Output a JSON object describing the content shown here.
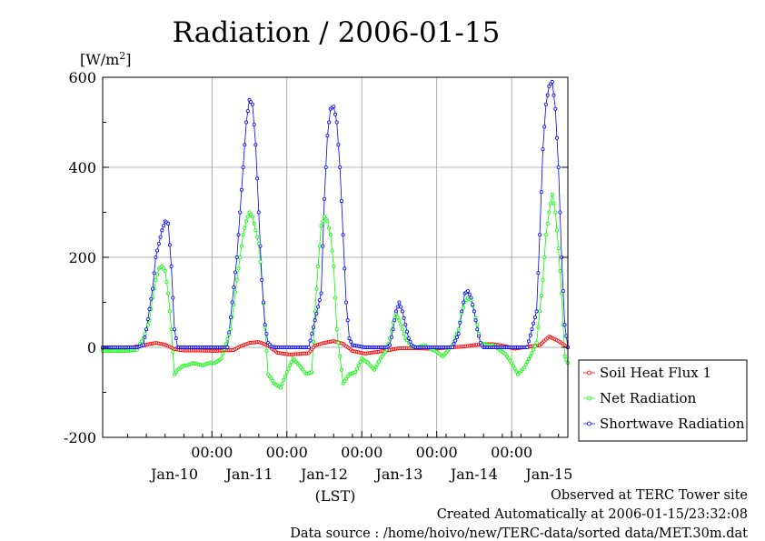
{
  "chart_data": {
    "type": "line",
    "title": "Radiation / 2006-01-15",
    "ylabel": "[W/m",
    "ylabel_sup": "2",
    "ylabel_close": "]",
    "xlabel": "(LST)",
    "ylim": [
      -200,
      600
    ],
    "xlim": [
      -8,
      141
    ],
    "x_units": "hours since 2006-01-09 21:00 LST",
    "yticks": [
      -200,
      0,
      200,
      400,
      600
    ],
    "ytick_labels": [
      "-200",
      "0",
      "200",
      "400",
      "600"
    ],
    "xticks_time": [
      27,
      51,
      75,
      99,
      123
    ],
    "xtick_time_labels": [
      "00:00",
      "00:00",
      "00:00",
      "00:00",
      "00:00"
    ],
    "xtick_day_labels": [
      "Jan-10",
      "Jan-11",
      "Jan-12",
      "Jan-13",
      "Jan-14",
      "Jan-15"
    ],
    "xtick_day_positions": [
      15,
      39,
      63,
      87,
      111,
      135
    ],
    "grid": true,
    "legend_position": "right",
    "series": [
      {
        "name": "Soil Heat Flux 1",
        "color": "#ff0000",
        "x": [
          -8,
          0,
          3,
          6,
          9,
          12,
          15,
          18,
          22,
          28,
          34,
          36,
          39,
          42,
          45,
          48,
          52,
          58,
          60,
          63,
          66,
          69,
          72,
          76,
          84,
          87,
          90,
          93,
          96,
          100,
          108,
          111,
          114,
          117,
          120,
          124,
          132,
          135,
          138,
          141
        ],
        "y": [
          -2,
          -2,
          2,
          6,
          10,
          6,
          -4,
          -7,
          -7,
          -8,
          -6,
          2,
          10,
          12,
          4,
          -12,
          -16,
          -13,
          4,
          10,
          14,
          8,
          -8,
          -14,
          -6,
          -2,
          -2,
          -2,
          -3,
          -2,
          2,
          5,
          7,
          7,
          4,
          -3,
          5,
          24,
          14,
          0
        ]
      },
      {
        "name": "Net Radiation",
        "color": "#00ff00",
        "x": [
          -8,
          0,
          3,
          5,
          7,
          8,
          9,
          10,
          11,
          12,
          13,
          14,
          15,
          16,
          17,
          18,
          19,
          21,
          24,
          26,
          28,
          30,
          33,
          35,
          37,
          38,
          39,
          40,
          42,
          43,
          45,
          47,
          49,
          51,
          53,
          55,
          57,
          58,
          59,
          60,
          61,
          62,
          63,
          64,
          65,
          66,
          67,
          69,
          71,
          73,
          75,
          77,
          79,
          81,
          83,
          84,
          85,
          86,
          87,
          88,
          89,
          91,
          93,
          95,
          97,
          99,
          101,
          104,
          106,
          107,
          108,
          109,
          110,
          111,
          112,
          113,
          115,
          117,
          119,
          121,
          123,
          125,
          127,
          129,
          131,
          133,
          134,
          135,
          136,
          137,
          138,
          139,
          140,
          141
        ],
        "y": [
          -8,
          -8,
          -5,
          20,
          60,
          110,
          150,
          175,
          180,
          170,
          120,
          40,
          -60,
          -50,
          -45,
          -40,
          -40,
          -35,
          -40,
          -35,
          -35,
          -25,
          40,
          150,
          250,
          280,
          300,
          290,
          230,
          150,
          -60,
          -80,
          -90,
          -55,
          -25,
          -40,
          -58,
          -58,
          -55,
          80,
          180,
          270,
          290,
          280,
          250,
          180,
          40,
          -80,
          -60,
          -55,
          -25,
          -35,
          -50,
          -25,
          -5,
          20,
          55,
          75,
          60,
          40,
          20,
          2,
          0,
          5,
          -3,
          -10,
          -20,
          5,
          40,
          75,
          100,
          110,
          105,
          80,
          50,
          10,
          5,
          5,
          -5,
          -15,
          -35,
          -60,
          -45,
          -20,
          10,
          150,
          250,
          300,
          340,
          300,
          220,
          120,
          -20,
          -35
        ]
      },
      {
        "name": "Shortwave Radiation",
        "color": "#0000ff",
        "x": [
          -8,
          0,
          3,
          5,
          6,
          8,
          9,
          10,
          11,
          12,
          13,
          14,
          15,
          16,
          17,
          20,
          26,
          32,
          35,
          37,
          38,
          39,
          40,
          41,
          42,
          43,
          44,
          45,
          46,
          47,
          48,
          52,
          58,
          62,
          63,
          64,
          65,
          66,
          67,
          68,
          69,
          70,
          71,
          72,
          76,
          83,
          84,
          85,
          86,
          87,
          88,
          89,
          90,
          91,
          92,
          96,
          104,
          106,
          107,
          108,
          109,
          110,
          111,
          112,
          113,
          114,
          120,
          128,
          131,
          132,
          133,
          134,
          135,
          136,
          137,
          138,
          139,
          140,
          141
        ],
        "y": [
          0,
          0,
          0,
          5,
          40,
          130,
          200,
          230,
          260,
          280,
          275,
          180,
          40,
          0,
          0,
          0,
          0,
          0,
          200,
          400,
          500,
          550,
          540,
          450,
          300,
          150,
          50,
          10,
          2,
          0,
          0,
          0,
          0,
          120,
          330,
          470,
          530,
          535,
          500,
          400,
          250,
          100,
          20,
          5,
          0,
          0,
          5,
          40,
          80,
          100,
          80,
          50,
          20,
          5,
          0,
          0,
          0,
          30,
          80,
          120,
          125,
          110,
          80,
          40,
          10,
          0,
          0,
          0,
          80,
          250,
          440,
          540,
          580,
          590,
          530,
          400,
          200,
          50,
          0
        ]
      }
    ]
  },
  "footer": {
    "line1": "Observed at TERC Tower site",
    "line2": "Created Automatically at 2006-01-15/23:32:08",
    "line3": "Data source : /home/hoivo/new/TERC-data/sorted  data/MET.30m.dat"
  }
}
